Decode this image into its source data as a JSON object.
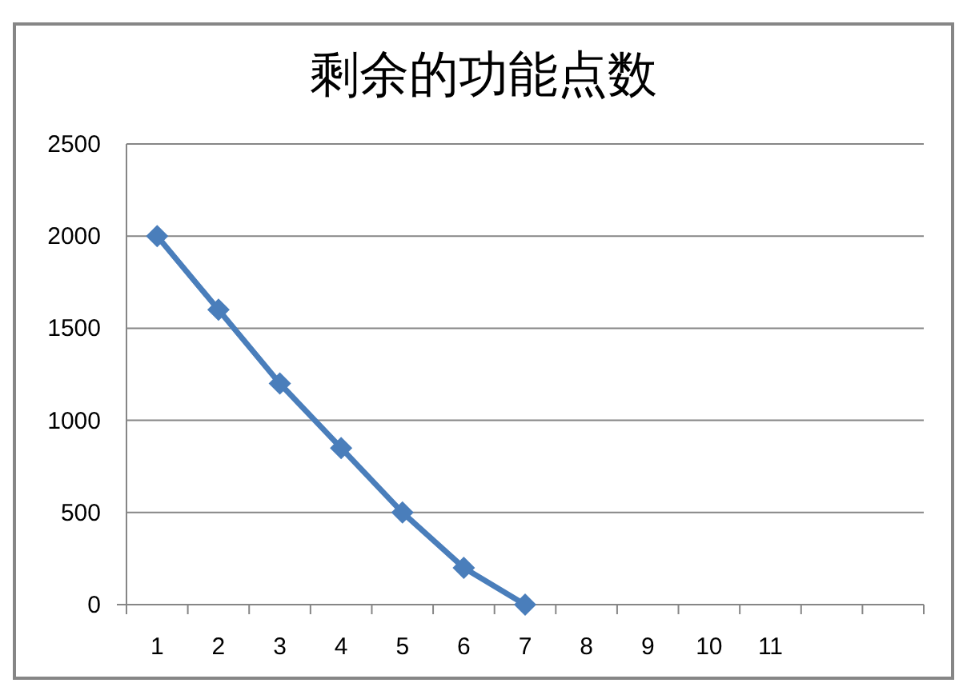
{
  "chart_data": {
    "type": "line",
    "title": "剩余的功能点数",
    "categories": [
      "1",
      "2",
      "3",
      "4",
      "5",
      "6",
      "7",
      "8",
      "9",
      "10",
      "11",
      null,
      null
    ],
    "series": [
      {
        "color": "#4a7ebb",
        "values": [
          2000,
          1600,
          1200,
          850,
          500,
          200,
          0,
          null,
          null,
          null,
          null,
          null,
          null
        ]
      }
    ],
    "ylim": [
      0,
      2500
    ],
    "yticks": [
      0,
      500,
      1000,
      1500,
      2000,
      2500
    ],
    "grid": "y",
    "marker": "diamond",
    "line_style": "solid"
  }
}
